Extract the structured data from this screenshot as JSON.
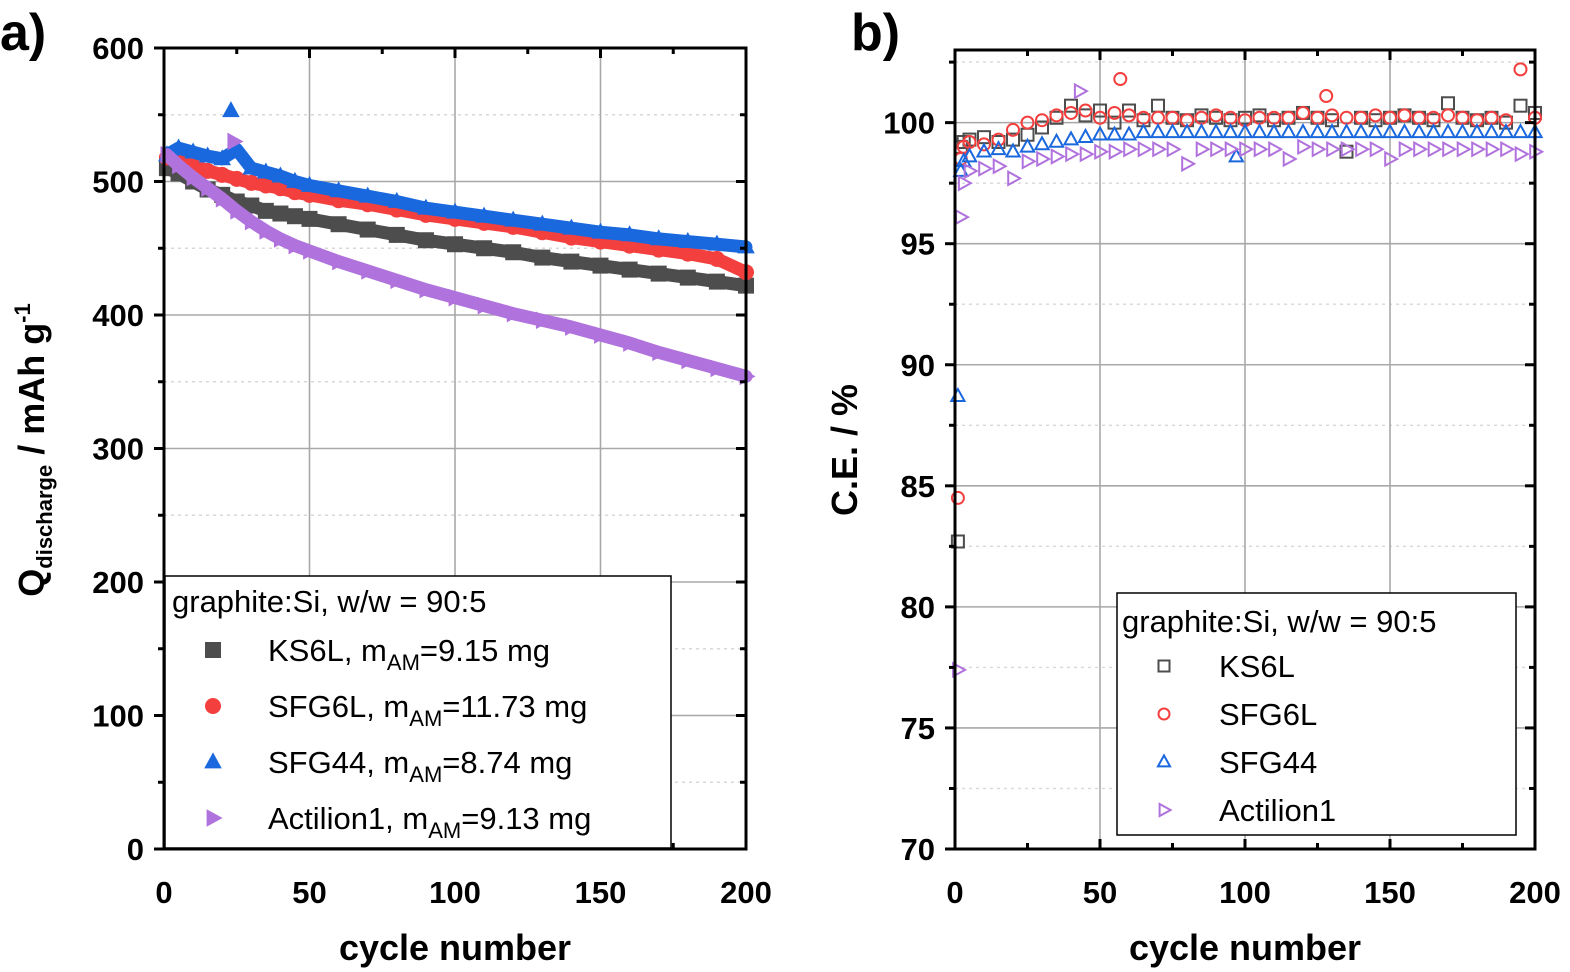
{
  "chart_data": [
    {
      "type": "scatter",
      "panel_label": "a)",
      "xlabel": "cycle number",
      "ylabel": {
        "main": "Q",
        "sub": "discharge",
        "rest": " / mAh g",
        "sup": "-1"
      },
      "xlim": [
        0,
        200
      ],
      "ylim": [
        0,
        600
      ],
      "xticks": [
        0,
        50,
        100,
        150,
        200
      ],
      "yticks": [
        0,
        100,
        200,
        300,
        400,
        500,
        600
      ],
      "grid": true,
      "legend": {
        "placement": "bottom-left",
        "title": "graphite:Si, w/w = 90:5"
      },
      "series": [
        {
          "name": "KS6L",
          "label_prefix": "KS6L, m",
          "label_sub": "AM",
          "label_suffix": "=9.15 mg",
          "color": "#4d4d4d",
          "marker": "square-filled",
          "x": [
            1,
            5,
            10,
            15,
            20,
            25,
            30,
            35,
            40,
            45,
            50,
            60,
            70,
            80,
            90,
            100,
            110,
            120,
            130,
            140,
            150,
            160,
            170,
            180,
            190,
            200
          ],
          "y": [
            510,
            506,
            500,
            494,
            490,
            485,
            482,
            478,
            476,
            474,
            472,
            468,
            464,
            460,
            456,
            453,
            450,
            447,
            443,
            440,
            437,
            434,
            431,
            428,
            425,
            422
          ]
        },
        {
          "name": "SFG6L",
          "label_prefix": "SFG6L, m",
          "label_sub": "AM",
          "label_suffix": "=11.73 mg",
          "color": "#f43f3f",
          "marker": "circle-filled",
          "x": [
            1,
            5,
            10,
            15,
            20,
            25,
            30,
            35,
            40,
            45,
            50,
            60,
            70,
            80,
            90,
            100,
            110,
            120,
            130,
            140,
            150,
            160,
            170,
            180,
            190,
            200
          ],
          "y": [
            518,
            516,
            512,
            508,
            505,
            502,
            499,
            497,
            495,
            492,
            490,
            486,
            483,
            479,
            475,
            472,
            469,
            466,
            462,
            458,
            455,
            452,
            449,
            446,
            442,
            432
          ]
        },
        {
          "name": "SFG44",
          "label_prefix": "SFG44, m",
          "label_sub": "AM",
          "label_suffix": "=8.74 mg",
          "color": "#1a68de",
          "marker": "triangle-up-filled",
          "x": [
            1,
            5,
            10,
            15,
            20,
            23,
            25,
            30,
            35,
            40,
            45,
            50,
            60,
            70,
            80,
            90,
            100,
            110,
            120,
            130,
            140,
            150,
            160,
            170,
            180,
            190,
            200
          ],
          "y": [
            520,
            525,
            522,
            519,
            517,
            553,
            524,
            510,
            507,
            504,
            500,
            497,
            493,
            489,
            485,
            480,
            477,
            474,
            471,
            468,
            465,
            462,
            460,
            457,
            455,
            453,
            451
          ]
        },
        {
          "name": "Actilion1",
          "label_prefix": "Actilion1, m",
          "label_sub": "AM",
          "label_suffix": "=9.13 mg",
          "color": "#b072dc",
          "marker": "triangle-right-filled",
          "x": [
            1,
            5,
            10,
            15,
            20,
            24,
            25,
            30,
            35,
            40,
            45,
            50,
            60,
            70,
            80,
            90,
            100,
            110,
            120,
            130,
            140,
            150,
            160,
            170,
            180,
            190,
            200
          ],
          "y": [
            520,
            512,
            503,
            495,
            487,
            530,
            478,
            470,
            463,
            457,
            452,
            448,
            440,
            433,
            426,
            419,
            413,
            407,
            401,
            396,
            391,
            385,
            379,
            372,
            366,
            360,
            354
          ]
        }
      ]
    },
    {
      "type": "scatter",
      "panel_label": "b)",
      "xlabel": "cycle number",
      "ylabel": "C.E. / %",
      "xlim": [
        0,
        200
      ],
      "ylim": [
        70,
        103
      ],
      "xticks": [
        0,
        50,
        100,
        150,
        200
      ],
      "yticks": [
        70,
        75,
        80,
        85,
        90,
        95,
        100
      ],
      "grid": true,
      "legend": {
        "placement": "bottom-right",
        "title": "graphite:Si, w/w = 90:5"
      },
      "series": [
        {
          "name": "KS6L",
          "color": "#4d4d4d",
          "marker": "square-open",
          "x": [
            1,
            2,
            3,
            5,
            10,
            15,
            20,
            25,
            30,
            35,
            40,
            45,
            50,
            55,
            60,
            65,
            70,
            75,
            80,
            85,
            90,
            95,
            100,
            105,
            110,
            115,
            120,
            125,
            130,
            135,
            140,
            145,
            150,
            155,
            160,
            165,
            170,
            175,
            180,
            185,
            190,
            195,
            200
          ],
          "y": [
            82.7,
            99.0,
            99.2,
            99.3,
            99.4,
            99.2,
            99.3,
            99.5,
            99.8,
            100.2,
            100.7,
            100.3,
            100.5,
            100.0,
            100.5,
            100.1,
            100.7,
            100.2,
            100.1,
            100.3,
            100.2,
            100.1,
            100.2,
            100.3,
            100.1,
            100.2,
            100.4,
            100.2,
            100.1,
            98.8,
            100.2,
            100.1,
            100.2,
            100.3,
            100.2,
            100.1,
            100.8,
            100.2,
            100.1,
            100.2,
            100.0,
            100.7,
            100.4
          ]
        },
        {
          "name": "SFG6L",
          "color": "#f43f3f",
          "marker": "circle-open",
          "x": [
            1,
            2,
            3,
            5,
            10,
            15,
            20,
            25,
            30,
            35,
            40,
            45,
            50,
            55,
            57,
            60,
            65,
            70,
            75,
            80,
            85,
            90,
            95,
            100,
            105,
            110,
            115,
            120,
            125,
            128,
            130,
            135,
            140,
            145,
            150,
            155,
            160,
            165,
            170,
            175,
            180,
            185,
            190,
            195,
            200
          ],
          "y": [
            84.5,
            98.5,
            99.0,
            99.2,
            99.1,
            99.3,
            99.7,
            100.0,
            100.1,
            100.3,
            100.4,
            100.5,
            100.2,
            100.4,
            101.8,
            100.3,
            100.2,
            100.2,
            100.2,
            100.1,
            100.2,
            100.3,
            100.2,
            100.1,
            100.2,
            100.2,
            100.2,
            100.4,
            100.2,
            101.1,
            100.3,
            100.2,
            100.2,
            100.3,
            100.2,
            100.3,
            100.2,
            100.2,
            100.3,
            100.2,
            100.1,
            100.2,
            100.1,
            102.2,
            100.2
          ]
        },
        {
          "name": "SFG44",
          "color": "#1a68de",
          "marker": "triangle-up-open",
          "x": [
            1,
            2,
            3,
            5,
            10,
            15,
            20,
            25,
            30,
            35,
            40,
            45,
            50,
            55,
            60,
            65,
            70,
            75,
            80,
            85,
            90,
            95,
            97,
            100,
            105,
            110,
            115,
            120,
            125,
            130,
            135,
            140,
            145,
            150,
            155,
            160,
            165,
            170,
            175,
            180,
            185,
            190,
            195,
            200
          ],
          "y": [
            88.7,
            98.0,
            98.4,
            98.6,
            98.8,
            98.9,
            98.8,
            99.0,
            99.1,
            99.2,
            99.3,
            99.4,
            99.5,
            99.5,
            99.5,
            99.6,
            99.6,
            99.6,
            99.6,
            99.6,
            99.6,
            99.6,
            98.6,
            99.6,
            99.6,
            99.6,
            99.6,
            99.6,
            99.6,
            99.6,
            99.6,
            99.6,
            99.6,
            99.6,
            99.6,
            99.6,
            99.6,
            99.6,
            99.6,
            99.6,
            99.6,
            99.6,
            99.6,
            99.6
          ]
        },
        {
          "name": "Actilion1",
          "color": "#b072dc",
          "marker": "triangle-right-open",
          "x": [
            1,
            2,
            3,
            5,
            10,
            15,
            20,
            25,
            30,
            35,
            40,
            43,
            45,
            50,
            55,
            60,
            65,
            70,
            75,
            80,
            85,
            90,
            95,
            100,
            105,
            110,
            115,
            120,
            125,
            130,
            135,
            140,
            145,
            150,
            155,
            160,
            165,
            170,
            175,
            180,
            185,
            190,
            195,
            200
          ],
          "y": [
            77.4,
            96.1,
            97.5,
            98.0,
            98.1,
            98.2,
            97.7,
            98.4,
            98.5,
            98.6,
            98.7,
            101.3,
            98.7,
            98.8,
            98.8,
            98.9,
            98.9,
            98.9,
            98.9,
            98.3,
            98.9,
            98.9,
            98.9,
            98.9,
            98.9,
            98.9,
            98.5,
            99.0,
            98.9,
            98.9,
            98.9,
            98.9,
            98.9,
            98.5,
            98.9,
            98.9,
            98.9,
            98.9,
            98.9,
            98.9,
            98.9,
            98.9,
            98.7,
            98.8
          ]
        }
      ]
    }
  ]
}
